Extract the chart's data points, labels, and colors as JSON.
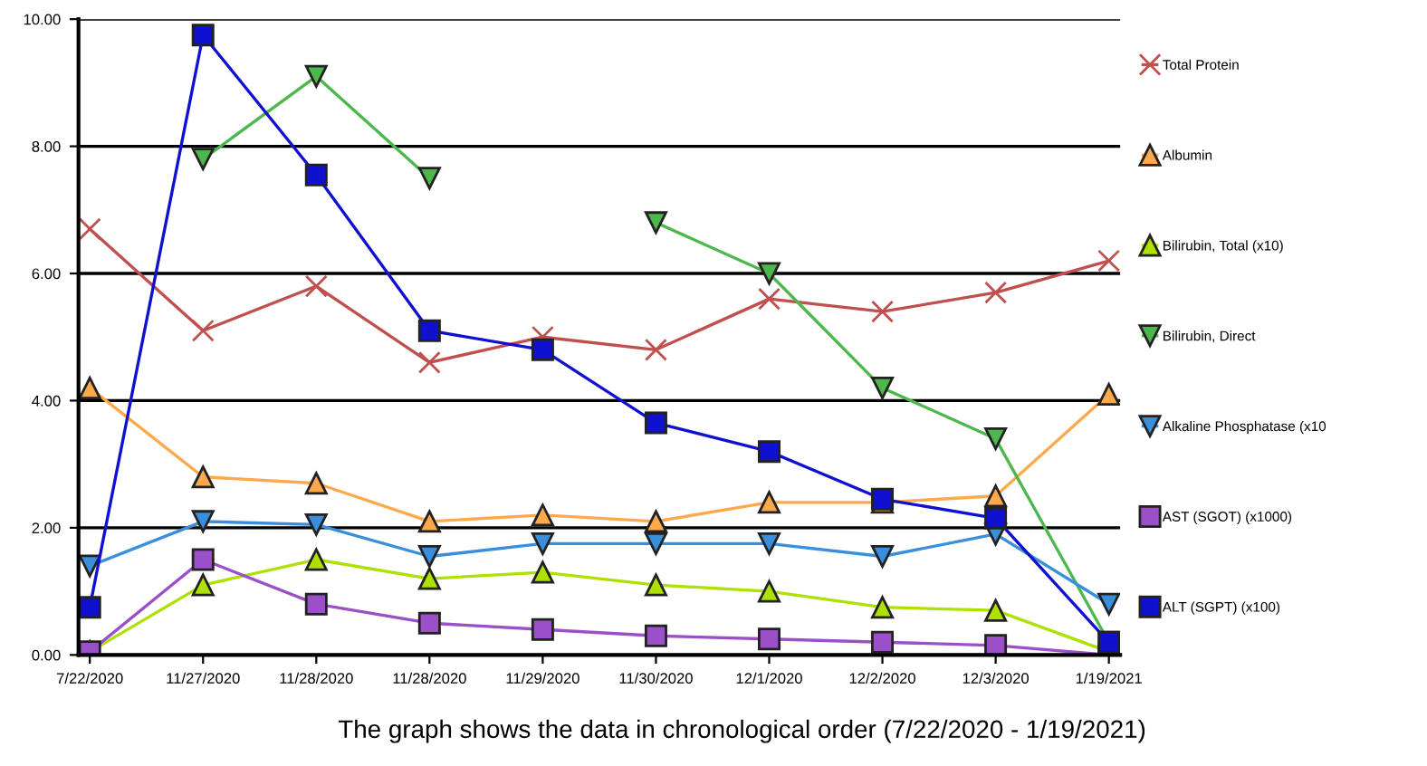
{
  "chart_data": {
    "type": "line",
    "categories": [
      "7/22/2020",
      "11/27/2020",
      "11/28/2020",
      "11/28/2020",
      "11/29/2020",
      "11/30/2020",
      "12/1/2020",
      "12/2/2020",
      "12/3/2020",
      "1/19/2021"
    ],
    "series": [
      {
        "name": "Total Protein",
        "color": "#c0504d",
        "marker": "cross",
        "values": [
          6.7,
          5.1,
          5.8,
          4.6,
          5.0,
          4.8,
          5.6,
          5.4,
          5.7,
          6.2
        ]
      },
      {
        "name": "Albumin",
        "color": "#ffa94d",
        "marker": "triangle",
        "values": [
          4.2,
          2.8,
          2.7,
          2.1,
          2.2,
          2.1,
          2.4,
          2.4,
          2.5,
          4.1
        ]
      },
      {
        "name": "Bilirubin, Total (x10)",
        "color": "#aee000",
        "marker": "triangle",
        "values": [
          0.05,
          1.1,
          1.5,
          1.2,
          1.3,
          1.1,
          1.0,
          0.75,
          0.7,
          0.05
        ]
      },
      {
        "name": "Bilirubin, Direct",
        "color": "#4cb84c",
        "marker": "triangle_down",
        "values": [
          null,
          7.8,
          9.1,
          7.5,
          null,
          6.8,
          6.0,
          4.2,
          3.4,
          0.2
        ]
      },
      {
        "name": "Alkaline Phosphatase (x10",
        "color": "#3a8fdc",
        "marker": "triangle_down",
        "values": [
          1.4,
          2.1,
          2.05,
          1.55,
          1.75,
          1.75,
          1.75,
          1.55,
          1.9,
          0.8
        ]
      },
      {
        "name": "AST (SGOT) (x1000)",
        "color": "#9b4fc8",
        "marker": "square",
        "values": [
          0.05,
          1.5,
          0.8,
          0.5,
          0.4,
          0.3,
          0.25,
          0.2,
          0.15,
          0.0
        ]
      },
      {
        "name": "ALT (SGPT) (x100)",
        "color": "#1010d0",
        "marker": "square",
        "values": [
          0.75,
          9.75,
          7.55,
          5.1,
          4.8,
          3.65,
          3.2,
          2.45,
          2.15,
          0.2
        ]
      }
    ],
    "ylim": [
      0,
      10
    ],
    "yticks": [
      {
        "value": 0,
        "label": "0.00"
      },
      {
        "value": 2,
        "label": "2.00"
      },
      {
        "value": 4,
        "label": "4.00"
      },
      {
        "value": 6,
        "label": "6.00"
      },
      {
        "value": 8,
        "label": "8.00"
      },
      {
        "value": 10,
        "label": "10.00"
      }
    ],
    "grid": "y",
    "legend": "right",
    "annotations": [
      "The graph shows the data in chronological order (7/22/2020 - 1/19/2021)"
    ]
  }
}
